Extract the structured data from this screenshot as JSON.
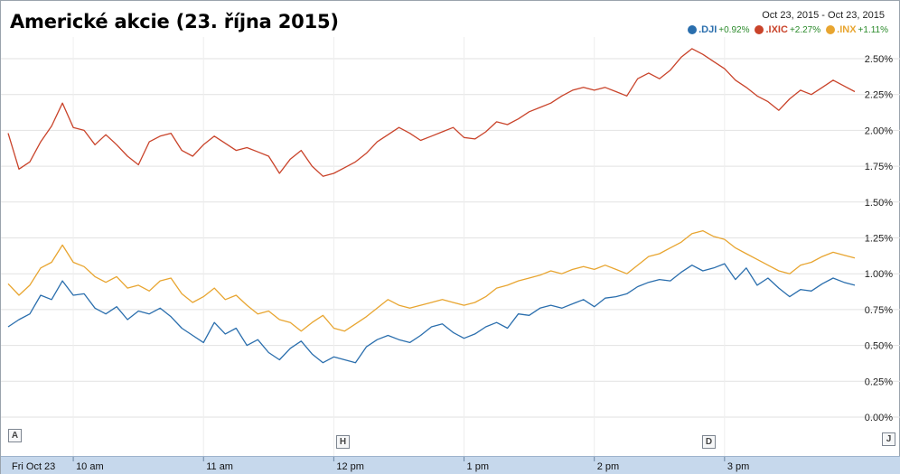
{
  "colors": {
    "dji": "#2a6ead",
    "ixic": "#c9432a",
    "inx": "#e8a530",
    "grid": "#e2e2e2",
    "axis_bar": "#c6d8ec",
    "positive_change": "#2a8a2a"
  },
  "header": {
    "date_range": "Oct 23, 2015  -  Oct 23, 2015"
  },
  "markers": [
    "A",
    "H",
    "D",
    "J"
  ],
  "chart_data": {
    "type": "line",
    "title": "Americké akcie (23. října 2015)",
    "xlabel": "",
    "ylabel": "",
    "x_ticks": [
      "Fri Oct 23",
      "10 am",
      "11 am",
      "12 pm",
      "1 pm",
      "2 pm",
      "3 pm"
    ],
    "y_ticks": [
      "0.00%",
      "0.25%",
      "0.50%",
      "0.75%",
      "1.00%",
      "1.25%",
      "1.50%",
      "1.75%",
      "2.00%",
      "2.25%",
      "2.50%"
    ],
    "ylim": [
      0,
      2.5
    ],
    "y_axis_side": "right",
    "grid": true,
    "legend_position": "top-right",
    "series": [
      {
        "name": ".DJI",
        "change": "+0.92%",
        "color_key": "dji",
        "points": [
          [
            "09:30",
            0.63
          ],
          [
            "09:35",
            0.68
          ],
          [
            "09:40",
            0.72
          ],
          [
            "09:45",
            0.85
          ],
          [
            "09:50",
            0.82
          ],
          [
            "09:55",
            0.95
          ],
          [
            "10:00",
            0.85
          ],
          [
            "10:05",
            0.86
          ],
          [
            "10:10",
            0.76
          ],
          [
            "10:15",
            0.72
          ],
          [
            "10:20",
            0.77
          ],
          [
            "10:25",
            0.68
          ],
          [
            "10:30",
            0.74
          ],
          [
            "10:35",
            0.72
          ],
          [
            "10:40",
            0.76
          ],
          [
            "10:45",
            0.7
          ],
          [
            "10:50",
            0.62
          ],
          [
            "10:55",
            0.57
          ],
          [
            "11:00",
            0.52
          ],
          [
            "11:05",
            0.66
          ],
          [
            "11:10",
            0.58
          ],
          [
            "11:15",
            0.62
          ],
          [
            "11:20",
            0.5
          ],
          [
            "11:25",
            0.54
          ],
          [
            "11:30",
            0.45
          ],
          [
            "11:35",
            0.4
          ],
          [
            "11:40",
            0.48
          ],
          [
            "11:45",
            0.53
          ],
          [
            "11:50",
            0.44
          ],
          [
            "11:55",
            0.38
          ],
          [
            "12:00",
            0.42
          ],
          [
            "12:05",
            0.4
          ],
          [
            "12:10",
            0.38
          ],
          [
            "12:15",
            0.49
          ],
          [
            "12:20",
            0.54
          ],
          [
            "12:25",
            0.57
          ],
          [
            "12:30",
            0.54
          ],
          [
            "12:35",
            0.52
          ],
          [
            "12:40",
            0.57
          ],
          [
            "12:45",
            0.63
          ],
          [
            "12:50",
            0.65
          ],
          [
            "12:55",
            0.59
          ],
          [
            "13:00",
            0.55
          ],
          [
            "13:05",
            0.58
          ],
          [
            "13:10",
            0.63
          ],
          [
            "13:15",
            0.66
          ],
          [
            "13:20",
            0.62
          ],
          [
            "13:25",
            0.72
          ],
          [
            "13:30",
            0.71
          ],
          [
            "13:35",
            0.76
          ],
          [
            "13:40",
            0.78
          ],
          [
            "13:45",
            0.76
          ],
          [
            "13:50",
            0.79
          ],
          [
            "13:55",
            0.82
          ],
          [
            "14:00",
            0.77
          ],
          [
            "14:05",
            0.83
          ],
          [
            "14:10",
            0.84
          ],
          [
            "14:15",
            0.86
          ],
          [
            "14:20",
            0.91
          ],
          [
            "14:25",
            0.94
          ],
          [
            "14:30",
            0.96
          ],
          [
            "14:35",
            0.95
          ],
          [
            "14:40",
            1.01
          ],
          [
            "14:45",
            1.06
          ],
          [
            "14:50",
            1.02
          ],
          [
            "14:55",
            1.04
          ],
          [
            "15:00",
            1.07
          ],
          [
            "15:05",
            0.96
          ],
          [
            "15:10",
            1.04
          ],
          [
            "15:15",
            0.92
          ],
          [
            "15:20",
            0.97
          ],
          [
            "15:25",
            0.9
          ],
          [
            "15:30",
            0.84
          ],
          [
            "15:35",
            0.89
          ],
          [
            "15:40",
            0.88
          ],
          [
            "15:45",
            0.93
          ],
          [
            "15:50",
            0.97
          ],
          [
            "15:55",
            0.94
          ],
          [
            "16:00",
            0.92
          ]
        ]
      },
      {
        "name": ".IXIC",
        "change": "+2.27%",
        "color_key": "ixic",
        "points": [
          [
            "09:30",
            1.98
          ],
          [
            "09:35",
            1.73
          ],
          [
            "09:40",
            1.78
          ],
          [
            "09:45",
            1.92
          ],
          [
            "09:50",
            2.03
          ],
          [
            "09:55",
            2.19
          ],
          [
            "10:00",
            2.02
          ],
          [
            "10:05",
            2.0
          ],
          [
            "10:10",
            1.9
          ],
          [
            "10:15",
            1.97
          ],
          [
            "10:20",
            1.9
          ],
          [
            "10:25",
            1.82
          ],
          [
            "10:30",
            1.76
          ],
          [
            "10:35",
            1.92
          ],
          [
            "10:40",
            1.96
          ],
          [
            "10:45",
            1.98
          ],
          [
            "10:50",
            1.86
          ],
          [
            "10:55",
            1.82
          ],
          [
            "11:00",
            1.9
          ],
          [
            "11:05",
            1.96
          ],
          [
            "11:10",
            1.91
          ],
          [
            "11:15",
            1.86
          ],
          [
            "11:20",
            1.88
          ],
          [
            "11:25",
            1.85
          ],
          [
            "11:30",
            1.82
          ],
          [
            "11:35",
            1.7
          ],
          [
            "11:40",
            1.8
          ],
          [
            "11:45",
            1.86
          ],
          [
            "11:50",
            1.75
          ],
          [
            "11:55",
            1.68
          ],
          [
            "12:00",
            1.7
          ],
          [
            "12:05",
            1.74
          ],
          [
            "12:10",
            1.78
          ],
          [
            "12:15",
            1.84
          ],
          [
            "12:20",
            1.92
          ],
          [
            "12:25",
            1.97
          ],
          [
            "12:30",
            2.02
          ],
          [
            "12:35",
            1.98
          ],
          [
            "12:40",
            1.93
          ],
          [
            "12:45",
            1.96
          ],
          [
            "12:50",
            1.99
          ],
          [
            "12:55",
            2.02
          ],
          [
            "13:00",
            1.95
          ],
          [
            "13:05",
            1.94
          ],
          [
            "13:10",
            1.99
          ],
          [
            "13:15",
            2.06
          ],
          [
            "13:20",
            2.04
          ],
          [
            "13:25",
            2.08
          ],
          [
            "13:30",
            2.13
          ],
          [
            "13:35",
            2.16
          ],
          [
            "13:40",
            2.19
          ],
          [
            "13:45",
            2.24
          ],
          [
            "13:50",
            2.28
          ],
          [
            "13:55",
            2.3
          ],
          [
            "14:00",
            2.28
          ],
          [
            "14:05",
            2.3
          ],
          [
            "14:10",
            2.27
          ],
          [
            "14:15",
            2.24
          ],
          [
            "14:20",
            2.36
          ],
          [
            "14:25",
            2.4
          ],
          [
            "14:30",
            2.36
          ],
          [
            "14:35",
            2.42
          ],
          [
            "14:40",
            2.51
          ],
          [
            "14:45",
            2.57
          ],
          [
            "14:50",
            2.53
          ],
          [
            "14:55",
            2.48
          ],
          [
            "15:00",
            2.43
          ],
          [
            "15:05",
            2.35
          ],
          [
            "15:10",
            2.3
          ],
          [
            "15:15",
            2.24
          ],
          [
            "15:20",
            2.2
          ],
          [
            "15:25",
            2.14
          ],
          [
            "15:30",
            2.22
          ],
          [
            "15:35",
            2.28
          ],
          [
            "15:40",
            2.25
          ],
          [
            "15:45",
            2.3
          ],
          [
            "15:50",
            2.35
          ],
          [
            "15:55",
            2.31
          ],
          [
            "16:00",
            2.27
          ]
        ]
      },
      {
        "name": ".INX",
        "change": "+1.11%",
        "color_key": "inx",
        "points": [
          [
            "09:30",
            0.93
          ],
          [
            "09:35",
            0.85
          ],
          [
            "09:40",
            0.92
          ],
          [
            "09:45",
            1.04
          ],
          [
            "09:50",
            1.08
          ],
          [
            "09:55",
            1.2
          ],
          [
            "10:00",
            1.08
          ],
          [
            "10:05",
            1.05
          ],
          [
            "10:10",
            0.98
          ],
          [
            "10:15",
            0.94
          ],
          [
            "10:20",
            0.98
          ],
          [
            "10:25",
            0.9
          ],
          [
            "10:30",
            0.92
          ],
          [
            "10:35",
            0.88
          ],
          [
            "10:40",
            0.95
          ],
          [
            "10:45",
            0.97
          ],
          [
            "10:50",
            0.86
          ],
          [
            "10:55",
            0.8
          ],
          [
            "11:00",
            0.84
          ],
          [
            "11:05",
            0.9
          ],
          [
            "11:10",
            0.82
          ],
          [
            "11:15",
            0.85
          ],
          [
            "11:20",
            0.78
          ],
          [
            "11:25",
            0.72
          ],
          [
            "11:30",
            0.74
          ],
          [
            "11:35",
            0.68
          ],
          [
            "11:40",
            0.66
          ],
          [
            "11:45",
            0.6
          ],
          [
            "11:50",
            0.66
          ],
          [
            "11:55",
            0.71
          ],
          [
            "12:00",
            0.62
          ],
          [
            "12:05",
            0.6
          ],
          [
            "12:10",
            0.65
          ],
          [
            "12:15",
            0.7
          ],
          [
            "12:20",
            0.76
          ],
          [
            "12:25",
            0.82
          ],
          [
            "12:30",
            0.78
          ],
          [
            "12:35",
            0.76
          ],
          [
            "12:40",
            0.78
          ],
          [
            "12:45",
            0.8
          ],
          [
            "12:50",
            0.82
          ],
          [
            "12:55",
            0.8
          ],
          [
            "13:00",
            0.78
          ],
          [
            "13:05",
            0.8
          ],
          [
            "13:10",
            0.84
          ],
          [
            "13:15",
            0.9
          ],
          [
            "13:20",
            0.92
          ],
          [
            "13:25",
            0.95
          ],
          [
            "13:30",
            0.97
          ],
          [
            "13:35",
            0.99
          ],
          [
            "13:40",
            1.02
          ],
          [
            "13:45",
            1.0
          ],
          [
            "13:50",
            1.03
          ],
          [
            "13:55",
            1.05
          ],
          [
            "14:00",
            1.03
          ],
          [
            "14:05",
            1.06
          ],
          [
            "14:10",
            1.03
          ],
          [
            "14:15",
            1.0
          ],
          [
            "14:20",
            1.06
          ],
          [
            "14:25",
            1.12
          ],
          [
            "14:30",
            1.14
          ],
          [
            "14:35",
            1.18
          ],
          [
            "14:40",
            1.22
          ],
          [
            "14:45",
            1.28
          ],
          [
            "14:50",
            1.3
          ],
          [
            "14:55",
            1.26
          ],
          [
            "15:00",
            1.24
          ],
          [
            "15:05",
            1.18
          ],
          [
            "15:10",
            1.14
          ],
          [
            "15:15",
            1.1
          ],
          [
            "15:20",
            1.06
          ],
          [
            "15:25",
            1.02
          ],
          [
            "15:30",
            1.0
          ],
          [
            "15:35",
            1.06
          ],
          [
            "15:40",
            1.08
          ],
          [
            "15:45",
            1.12
          ],
          [
            "15:50",
            1.15
          ],
          [
            "15:55",
            1.13
          ],
          [
            "16:00",
            1.11
          ]
        ]
      }
    ]
  }
}
